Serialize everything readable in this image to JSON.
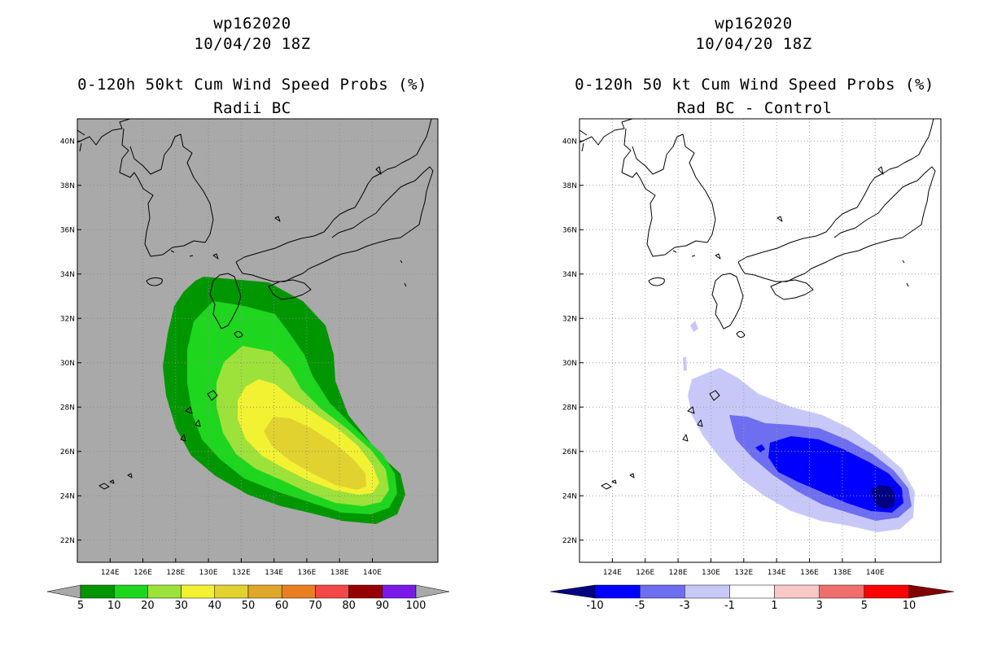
{
  "panels": [
    {
      "id": "left",
      "storm_id": "wp162020",
      "date": "10/04/20 18Z",
      "title": "0-120h 50kt Cum Wind Speed Probs (%)",
      "subtitle": "Radii BC",
      "background": "#a9a9a9",
      "colorbar": {
        "labels": [
          "5",
          "10",
          "20",
          "30",
          "40",
          "50",
          "60",
          "70",
          "80",
          "90",
          "100"
        ],
        "under_color": "#a9a9a9",
        "over_color": "#a9a9a9",
        "colors": [
          "#009600",
          "#1fd61f",
          "#9de23a",
          "#f2f232",
          "#e2d230",
          "#e0a82a",
          "#e88022",
          "#f24848",
          "#960000",
          "#7a1ae8"
        ]
      }
    },
    {
      "id": "right",
      "storm_id": "wp162020",
      "date": "10/04/20 18Z",
      "title": "0-120h 50 kt Cum Wind Speed Probs (%)",
      "subtitle": "Rad BC - Control",
      "background": "#ffffff",
      "colorbar": {
        "labels": [
          "-10",
          "-5",
          "-3",
          "-1",
          "1",
          "3",
          "5",
          "10"
        ],
        "under_color": "#000080",
        "over_color": "#800000",
        "colors": [
          "#0000ff",
          "#6e6ef0",
          "#c8c8f8",
          "#ffffff",
          "#f8c8c8",
          "#f06e6e",
          "#ff0000"
        ]
      }
    }
  ],
  "chart_data": [
    {
      "type": "heatmap",
      "title": "0-120h 50kt Cum Wind Speed Probs (%)",
      "subtitle": "Radii BC",
      "x_tick_labels": [
        "124E",
        "126E",
        "128E",
        "130E",
        "132E",
        "134E",
        "136E",
        "138E",
        "140E"
      ],
      "y_tick_labels": [
        "22N",
        "24N",
        "26N",
        "28N",
        "30N",
        "32N",
        "34N",
        "36N",
        "38N",
        "40N"
      ],
      "xlim": [
        122,
        144
      ],
      "ylim": [
        21,
        41
      ],
      "levels": [
        5,
        10,
        20,
        30,
        40,
        50,
        60,
        70,
        80,
        90,
        100
      ],
      "max_probability_band": "40-50",
      "max_probability_center": {
        "lon": 135.5,
        "lat": 25.0
      }
    },
    {
      "type": "heatmap",
      "title": "0-120h 50 kt Cum Wind Speed Probs (%)",
      "subtitle": "Rad BC - Control",
      "x_tick_labels": [
        "124E",
        "126E",
        "128E",
        "130E",
        "132E",
        "134E",
        "136E",
        "138E",
        "140E"
      ],
      "y_tick_labels": [
        "22N",
        "24N",
        "26N",
        "28N",
        "30N",
        "32N",
        "34N",
        "36N",
        "38N",
        "40N"
      ],
      "xlim": [
        122,
        144
      ],
      "ylim": [
        21,
        41
      ],
      "levels": [
        -10,
        -5,
        -3,
        -1,
        1,
        3,
        5,
        10
      ],
      "min_difference_band": "< -10",
      "min_difference_center": {
        "lon": 138.7,
        "lat": 23.9
      }
    }
  ]
}
